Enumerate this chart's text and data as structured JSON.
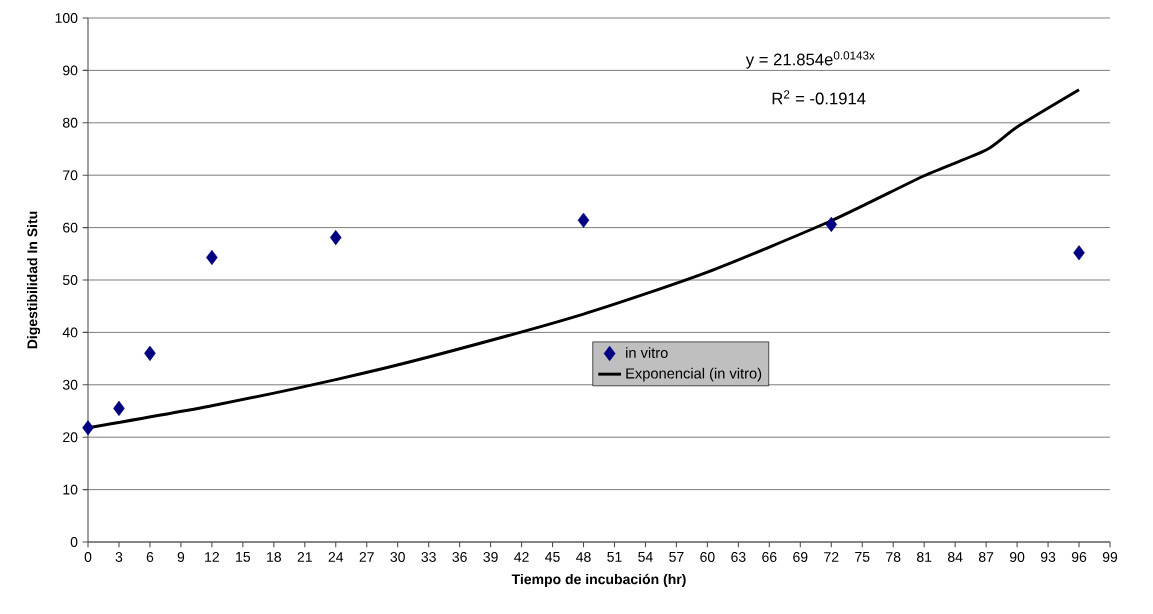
{
  "chart_data": {
    "type": "scatter",
    "xlabel": "Tiempo de incubación (hr)",
    "ylabel": "Digestibilidad In Situ",
    "xlim": [
      0,
      99
    ],
    "xticks": [
      0,
      3,
      6,
      9,
      12,
      15,
      18,
      21,
      24,
      27,
      30,
      33,
      36,
      39,
      42,
      45,
      48,
      51,
      54,
      57,
      60,
      63,
      66,
      69,
      72,
      75,
      78,
      81,
      84,
      87,
      90,
      93,
      96,
      99
    ],
    "ylim": [
      0,
      100
    ],
    "yticks": [
      0,
      10,
      20,
      30,
      40,
      50,
      60,
      70,
      80,
      90,
      100
    ],
    "grid": "y",
    "legend": "center",
    "series": [
      {
        "name": "in vitro",
        "marker": "diamond",
        "color": "#000080",
        "x": [
          0,
          3,
          6,
          12,
          24,
          48,
          72,
          96
        ],
        "values": [
          21.8,
          25.5,
          36.0,
          54.3,
          58.1,
          61.4,
          60.6,
          55.2
        ]
      },
      {
        "name": "Exponencial (in vitro)",
        "type": "line",
        "marker": "none",
        "line_style": "solid",
        "color": "#000000",
        "x": [
          0,
          12,
          24,
          33,
          48,
          60,
          72,
          81,
          87,
          90,
          96
        ],
        "values": [
          21.8,
          26.0,
          31.0,
          35.3,
          43.5,
          51.5,
          61.3,
          69.9,
          74.8,
          79.2,
          86.3
        ]
      }
    ],
    "annotations": [
      "y = 21.854e$^{0.0143x}$",
      "R$^{2}$ = -0.1914"
    ]
  }
}
